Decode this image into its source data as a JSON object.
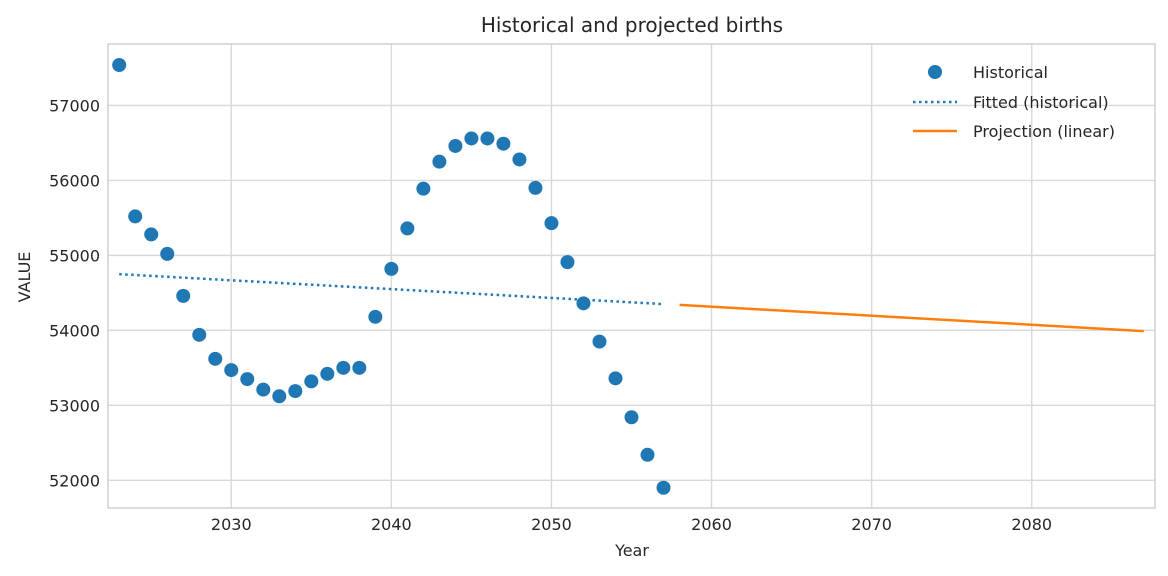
{
  "chart_data": {
    "type": "line",
    "title": "Historical and projected births",
    "xlabel": "Year",
    "ylabel": "VALUE",
    "xlim": [
      2022.3,
      2087.7
    ],
    "ylim": [
      51630,
      57820
    ],
    "xticks": [
      2030,
      2040,
      2050,
      2060,
      2070,
      2080
    ],
    "yticks": [
      52000,
      53000,
      54000,
      55000,
      56000,
      57000
    ],
    "grid": true,
    "legend_position": "top-right",
    "colors": {
      "historical": "#1f77b4",
      "fitted": "#1f77b4",
      "projection": "#ff7f0e"
    },
    "series": [
      {
        "name": "Historical",
        "style": "scatter",
        "x": [
          2023,
          2024,
          2025,
          2026,
          2027,
          2028,
          2029,
          2030,
          2031,
          2032,
          2033,
          2034,
          2035,
          2036,
          2037,
          2038,
          2039,
          2040,
          2041,
          2042,
          2043,
          2044,
          2045,
          2046,
          2047,
          2048,
          2049,
          2050,
          2051,
          2052,
          2053,
          2054,
          2055,
          2056,
          2057
        ],
        "y": [
          57540,
          55520,
          55280,
          55020,
          54460,
          53940,
          53620,
          53470,
          53350,
          53210,
          53120,
          53190,
          53320,
          53420,
          53500,
          53500,
          54180,
          54820,
          55360,
          55890,
          56250,
          56460,
          56560,
          56560,
          56490,
          56280,
          55900,
          55430,
          54910,
          54360,
          53850,
          53360,
          52840,
          52340,
          51900
        ]
      },
      {
        "name": "Fitted (historical)",
        "style": "dotted-line",
        "x": [
          2023,
          2057
        ],
        "y": [
          54750,
          54350
        ]
      },
      {
        "name": "Projection (linear)",
        "style": "line",
        "x": [
          2058,
          2087
        ],
        "y": [
          54340,
          53990
        ]
      }
    ]
  }
}
